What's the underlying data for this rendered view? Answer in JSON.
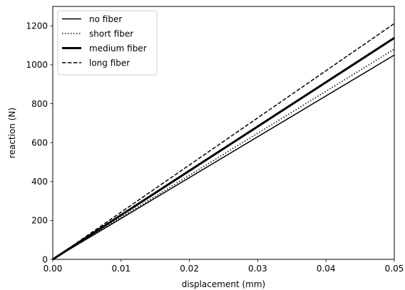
{
  "chart_data": {
    "type": "line",
    "title": "",
    "xlabel": "displacement (mm)",
    "ylabel": "reaction (N)",
    "xlim": [
      0,
      0.05
    ],
    "ylim": [
      0,
      1300
    ],
    "xticks": [
      0,
      0.01,
      0.02,
      0.03,
      0.04,
      0.05
    ],
    "xtick_labels": [
      "0.00",
      "0.01",
      "0.02",
      "0.03",
      "0.04",
      "0.05"
    ],
    "yticks": [
      0,
      200,
      400,
      600,
      800,
      1000,
      1200
    ],
    "ytick_labels": [
      "0",
      "200",
      "400",
      "600",
      "800",
      "1000",
      "1200"
    ],
    "grid": false,
    "legend_position": "top-left",
    "series": [
      {
        "name": "no fiber",
        "style": "solid",
        "color": "#000000",
        "x": [
          0,
          0.05
        ],
        "y": [
          0,
          1050
        ]
      },
      {
        "name": "short fiber",
        "style": "dotted",
        "color": "#000000",
        "x": [
          0,
          0.05
        ],
        "y": [
          0,
          1080
        ]
      },
      {
        "name": "medium fiber",
        "style": "thick",
        "color": "#000000",
        "x": [
          0,
          0.05
        ],
        "y": [
          0,
          1138
        ]
      },
      {
        "name": "long fiber",
        "style": "dashed",
        "color": "#000000",
        "x": [
          0,
          0.05
        ],
        "y": [
          0,
          1212
        ]
      }
    ]
  }
}
